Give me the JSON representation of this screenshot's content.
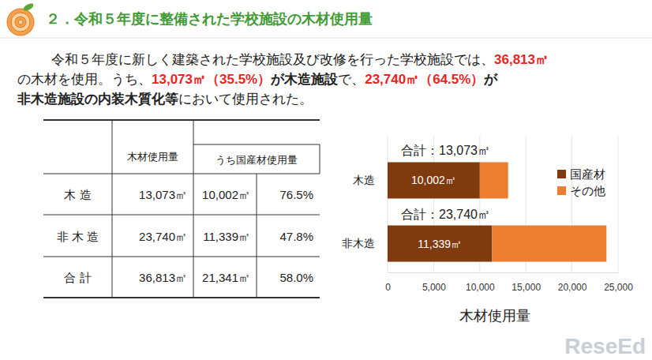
{
  "header": {
    "title": "２．令和５年度に整備された学校施設の木材使用量"
  },
  "summary": {
    "lines": [
      [
        {
          "text": "令和５年度に新しく建築された学校施設及び改修を行った学校施設では、"
        },
        {
          "text": "36,813㎥",
          "bold": true,
          "color": "#e8251f"
        }
      ],
      [
        {
          "text": "の木材を使用。うち、"
        },
        {
          "text": "13,073㎥（35.5%）",
          "bold": true,
          "color": "#e8251f"
        },
        {
          "text": "が木造施設",
          "bold": true
        },
        {
          "text": "で、"
        },
        {
          "text": "23,740㎥（64.5%）",
          "bold": true,
          "color": "#e8251f"
        },
        {
          "text": "が",
          "bold": true
        }
      ],
      [
        {
          "text": "非木造施設の内装木質化等",
          "bold": true
        },
        {
          "text": "において使用された。"
        }
      ]
    ]
  },
  "table": {
    "header": [
      "木材使用量",
      "うち国産材使用量"
    ],
    "rows": [
      [
        "木 造",
        "13,073㎥",
        "10,002㎥",
        "76.5%"
      ],
      [
        "非 木 造",
        "23,740㎥",
        "11,339㎥",
        "47.8%"
      ],
      [
        "合 計",
        "36,813㎥",
        "21,341㎥",
        "58.0%"
      ]
    ]
  },
  "chart_data": {
    "type": "bar",
    "orientation": "horizontal",
    "stacked": true,
    "categories": [
      "木造",
      "非木造"
    ],
    "series": [
      {
        "name": "国産材",
        "color": "#7f3b0d",
        "values": [
          10002,
          11339
        ],
        "data_labels": true,
        "value_labels": [
          "10,002㎥",
          "11,339㎥"
        ]
      },
      {
        "name": "その他",
        "color": "#ed7d31",
        "values": [
          3071,
          12401
        ]
      }
    ],
    "annotations": [
      "合計：13,073㎥",
      "合計：23,740㎥"
    ],
    "x_label": "木材使用量",
    "xlim": [
      0,
      25000
    ],
    "xticks": [
      0,
      {
        "value": 5000,
        "label": "5,000"
      },
      {
        "value": 10000,
        "label": "10,000"
      },
      {
        "value": 15000,
        "label": "15,000"
      },
      {
        "value": 20000,
        "label": "20,000"
      },
      {
        "value": 25000,
        "label": "25,000"
      }
    ],
    "grid": true,
    "legend": "right"
  },
  "watermark": "ReseEd"
}
